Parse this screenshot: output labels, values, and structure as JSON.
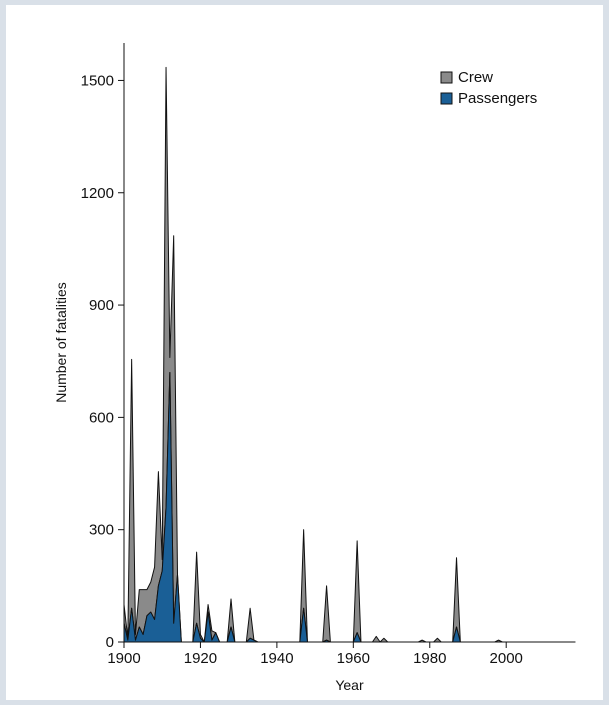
{
  "chart_data": {
    "type": "area",
    "stacked": true,
    "title": "",
    "xlabel": "Year",
    "ylabel": "Number of fatalities",
    "xlim": [
      1900,
      2018
    ],
    "ylim": [
      0,
      1600
    ],
    "xticks": [
      1900,
      1920,
      1940,
      1960,
      1980,
      2000
    ],
    "yticks": [
      0,
      300,
      600,
      900,
      1200,
      1500
    ],
    "grid": false,
    "legend_position": "top-right",
    "x": [
      1900,
      1901,
      1902,
      1903,
      1904,
      1905,
      1906,
      1907,
      1908,
      1909,
      1910,
      1911,
      1912,
      1913,
      1914,
      1915,
      1916,
      1917,
      1918,
      1919,
      1920,
      1921,
      1922,
      1923,
      1924,
      1925,
      1926,
      1927,
      1928,
      1929,
      1930,
      1931,
      1932,
      1933,
      1934,
      1935,
      1936,
      1937,
      1938,
      1939,
      1940,
      1941,
      1942,
      1943,
      1944,
      1945,
      1946,
      1947,
      1948,
      1949,
      1950,
      1951,
      1952,
      1953,
      1954,
      1955,
      1956,
      1957,
      1958,
      1959,
      1960,
      1961,
      1962,
      1963,
      1964,
      1965,
      1966,
      1967,
      1968,
      1969,
      1970,
      1971,
      1972,
      1973,
      1974,
      1975,
      1976,
      1977,
      1978,
      1979,
      1980,
      1981,
      1982,
      1983,
      1984,
      1985,
      1986,
      1987,
      1988,
      1989,
      1990,
      1991,
      1992,
      1993,
      1994,
      1995,
      1996,
      1997,
      1998,
      1999,
      2000,
      2001,
      2002,
      2003,
      2004,
      2005,
      2006,
      2007,
      2008,
      2009,
      2010,
      2011,
      2012,
      2013,
      2014,
      2015,
      2016,
      2017,
      2018
    ],
    "series": [
      {
        "name": "Passengers",
        "color": "#1a5f96",
        "values": [
          50,
          5,
          90,
          5,
          40,
          20,
          70,
          80,
          60,
          150,
          190,
          360,
          720,
          50,
          180,
          0,
          0,
          0,
          0,
          50,
          10,
          0,
          80,
          5,
          25,
          0,
          0,
          0,
          40,
          0,
          0,
          0,
          0,
          10,
          5,
          0,
          0,
          0,
          0,
          0,
          0,
          0,
          0,
          0,
          0,
          0,
          0,
          90,
          0,
          0,
          0,
          0,
          0,
          5,
          0,
          0,
          0,
          0,
          0,
          0,
          0,
          25,
          0,
          0,
          0,
          0,
          0,
          0,
          0,
          0,
          0,
          0,
          0,
          0,
          0,
          0,
          0,
          0,
          0,
          0,
          0,
          0,
          0,
          0,
          0,
          0,
          0,
          40,
          0,
          0,
          0,
          0,
          0,
          0,
          0,
          0,
          0,
          0,
          0,
          0,
          0,
          0,
          0,
          0,
          0,
          0,
          0,
          0,
          0,
          0,
          0,
          0,
          0,
          0,
          0,
          0,
          0,
          0,
          0
        ]
      },
      {
        "name": "Crew",
        "color": "#8a8a8a",
        "values": [
          50,
          5,
          665,
          15,
          100,
          120,
          70,
          80,
          140,
          305,
          30,
          1175,
          40,
          1035,
          0,
          0,
          0,
          0,
          0,
          190,
          10,
          0,
          20,
          25,
          0,
          0,
          0,
          0,
          75,
          0,
          0,
          0,
          0,
          80,
          0,
          0,
          0,
          0,
          0,
          0,
          0,
          0,
          0,
          0,
          0,
          0,
          0,
          210,
          0,
          0,
          0,
          0,
          0,
          145,
          0,
          0,
          0,
          0,
          0,
          0,
          0,
          245,
          0,
          0,
          0,
          0,
          15,
          0,
          10,
          0,
          0,
          0,
          0,
          0,
          0,
          0,
          0,
          0,
          5,
          0,
          0,
          0,
          10,
          0,
          0,
          0,
          0,
          185,
          0,
          0,
          0,
          0,
          0,
          0,
          0,
          0,
          0,
          0,
          5,
          0,
          0,
          0,
          0,
          0,
          0,
          0,
          0,
          0,
          0,
          0,
          0,
          0,
          0,
          0,
          0,
          0,
          0,
          0,
          0
        ]
      }
    ]
  },
  "legend": {
    "items": [
      {
        "label": "Crew",
        "color": "#8a8a8a"
      },
      {
        "label": "Passengers",
        "color": "#1a5f96"
      }
    ]
  }
}
